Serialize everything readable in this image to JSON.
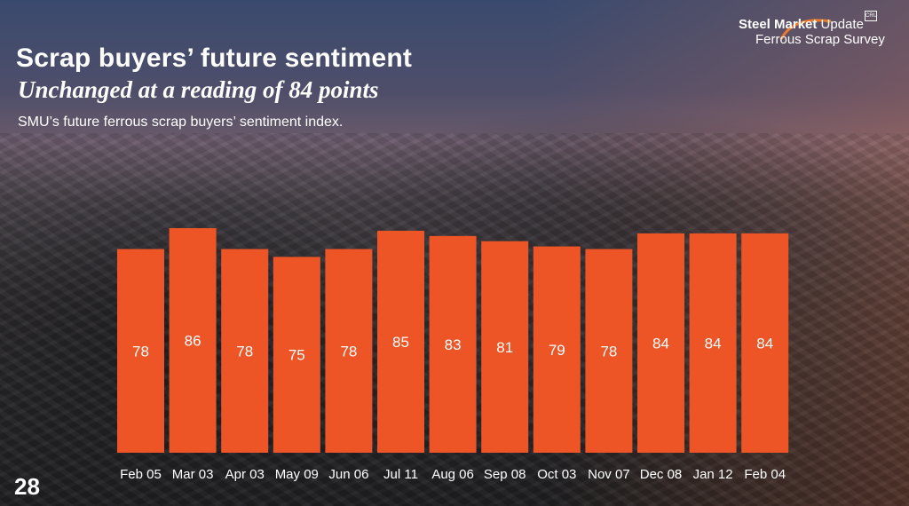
{
  "slide": {
    "title": "Scrap buyers’ future sentiment",
    "subtitle": "Unchanged at a reading of 84 points",
    "description": "SMU’s future ferrous scrap buyers’ sentiment index.",
    "page_number": "28"
  },
  "logo": {
    "brand_bold": "Steel Market",
    "brand_light": " Update",
    "survey": "Ferrous Scrap Survey",
    "badge": "CRU"
  },
  "colors": {
    "bar": "#ee5526",
    "text": "#ffffff"
  },
  "chart_data": {
    "type": "bar",
    "title": "",
    "xlabel": "",
    "ylabel": "",
    "categories": [
      "Feb 05",
      "Mar 03",
      "Apr 03",
      "May 09",
      "Jun 06",
      "Jul 11",
      "Aug 06",
      "Sep 08",
      "Oct 03",
      "Nov 07",
      "Dec 08",
      "Jan 12",
      "Feb 04"
    ],
    "values": [
      78,
      86,
      78,
      75,
      78,
      85,
      83,
      81,
      79,
      78,
      84,
      84,
      84
    ],
    "value_labels": [
      "78",
      "86",
      "78",
      "75",
      "78",
      "85",
      "83",
      "81",
      "79",
      "78",
      "84",
      "84",
      "84"
    ],
    "grid": false,
    "legend": "none",
    "ylim": [
      0,
      86
    ]
  }
}
